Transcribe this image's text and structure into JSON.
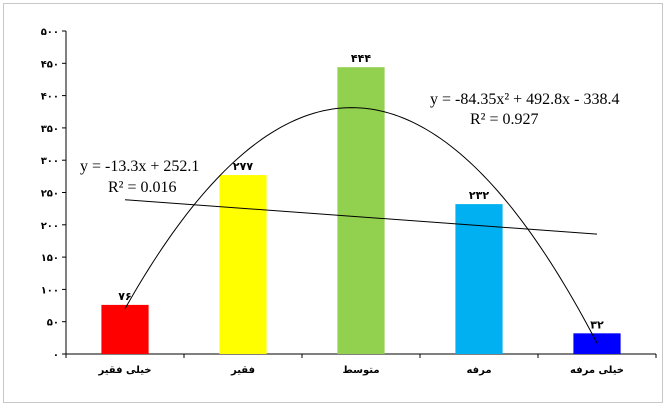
{
  "chart_data": {
    "type": "bar",
    "categories": [
      "خیلی فقیر",
      "فقیر",
      "متوسط",
      "مرفه",
      "خیلی مرفه"
    ],
    "values": [
      76,
      277,
      444,
      232,
      32
    ],
    "value_labels": [
      "۷۶",
      "۲۷۷",
      "۴۴۴",
      "۲۳۲",
      "۳۲"
    ],
    "bar_colors": [
      "#ff0000",
      "#ffff00",
      "#92d050",
      "#00b0f0",
      "#0000ff"
    ],
    "ylim": [
      0,
      500
    ],
    "y_ticks": [
      0,
      50,
      100,
      150,
      200,
      250,
      300,
      350,
      400,
      450,
      500
    ],
    "y_tick_labels": [
      "۰",
      "۵۰",
      "۱۰۰",
      "۱۵۰",
      "۲۰۰",
      "۲۵۰",
      "۳۰۰",
      "۳۵۰",
      "۴۰۰",
      "۴۵۰",
      "۵۰۰"
    ],
    "grid": false,
    "trendlines": [
      {
        "kind": "linear",
        "coefficients": [
          252.1,
          -13.3
        ],
        "equation": "y = -13.3x + 252.1",
        "r2": "R² = 0.016"
      },
      {
        "kind": "polynomial",
        "coefficients": [
          -338.4,
          492.8,
          -84.35
        ],
        "equation": "y = -84.35x² + 492.8x - 338.4",
        "r2": "R² = 0.927"
      }
    ]
  }
}
